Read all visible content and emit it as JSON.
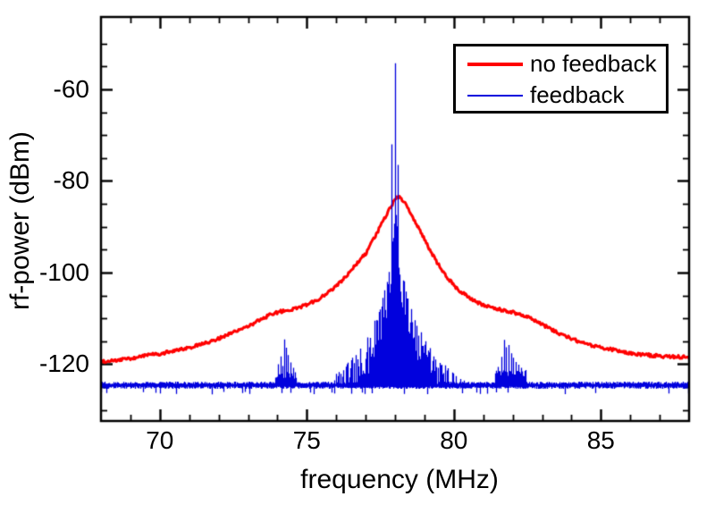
{
  "chart_data": {
    "type": "line",
    "title": "",
    "xlabel": "frequency (MHz)",
    "ylabel": "rf-power (dBm)",
    "xlim": [
      68,
      88
    ],
    "ylim": [
      -132.4,
      -44.2
    ],
    "x_major_ticks": [
      70,
      75,
      80,
      85
    ],
    "x_tick_labels": [
      "70",
      "75",
      "80",
      "85"
    ],
    "x_minor_ticks": [
      69,
      71,
      72,
      73,
      74,
      76,
      77,
      78,
      79,
      81,
      82,
      83,
      84,
      86,
      87
    ],
    "y_major_ticks": [
      -60,
      -80,
      -100,
      -120
    ],
    "y_tick_labels": [
      "-60",
      "-80",
      "-100",
      "-120"
    ],
    "y_minor_ticks": [
      -50,
      -55,
      -65,
      -70,
      -75,
      -85,
      -90,
      -95,
      -105,
      -110,
      -115,
      -125,
      -130
    ],
    "grid": false,
    "legend_position": "top-right",
    "frame_color": "#000000",
    "background_color": "#ffffff",
    "series": [
      {
        "name": "no feedback",
        "color": "#ff0000",
        "line_width": 3,
        "style": "smooth_noisy_line",
        "noise_db": 0.35,
        "points": [
          [
            68,
            -119.4
          ],
          [
            68.5,
            -119.1
          ],
          [
            69,
            -118.7
          ],
          [
            69.5,
            -118.2
          ],
          [
            70,
            -117.7
          ],
          [
            70.5,
            -117.1
          ],
          [
            71,
            -116.4
          ],
          [
            71.5,
            -115.5
          ],
          [
            72,
            -114.4
          ],
          [
            72.5,
            -113.1
          ],
          [
            73,
            -111.7
          ],
          [
            73.4,
            -110.4
          ],
          [
            73.7,
            -109.4
          ],
          [
            74,
            -108.7
          ],
          [
            74.3,
            -108.2
          ],
          [
            74.6,
            -107.9
          ],
          [
            75,
            -107
          ],
          [
            75.4,
            -105.8
          ],
          [
            75.8,
            -104
          ],
          [
            76.1,
            -102.3
          ],
          [
            76.4,
            -100.3
          ],
          [
            76.7,
            -98
          ],
          [
            77,
            -95.9
          ],
          [
            77.2,
            -93.6
          ],
          [
            77.4,
            -91.2
          ],
          [
            77.6,
            -88.7
          ],
          [
            77.8,
            -86.3
          ],
          [
            77.95,
            -84.6
          ],
          [
            78.1,
            -83.4
          ],
          [
            78.25,
            -84.1
          ],
          [
            78.4,
            -85.6
          ],
          [
            78.6,
            -87.8
          ],
          [
            78.8,
            -90.2
          ],
          [
            79,
            -92.7
          ],
          [
            79.2,
            -95.2
          ],
          [
            79.45,
            -98
          ],
          [
            79.7,
            -100.5
          ],
          [
            80,
            -102.8
          ],
          [
            80.3,
            -104.5
          ],
          [
            80.7,
            -106.2
          ],
          [
            81.1,
            -107.4
          ],
          [
            81.5,
            -108
          ],
          [
            81.9,
            -108.5
          ],
          [
            82.3,
            -109.2
          ],
          [
            82.7,
            -110.3
          ],
          [
            83.1,
            -111.7
          ],
          [
            83.6,
            -113.3
          ],
          [
            84.1,
            -114.7
          ],
          [
            84.6,
            -115.7
          ],
          [
            85.1,
            -116.5
          ],
          [
            85.6,
            -117.1
          ],
          [
            86.1,
            -117.7
          ],
          [
            86.6,
            -118
          ],
          [
            87.1,
            -118.3
          ],
          [
            87.6,
            -118.4
          ],
          [
            88,
            -118.5
          ]
        ]
      },
      {
        "name": "feedback",
        "color": "#0101dd",
        "line_width": 1.3,
        "style": "spectrum_comb",
        "baseline_dbm": -124.6,
        "baseline_noise_db": 0.55,
        "main_spike": [
          78.0,
          -54.3
        ],
        "secondary_spikes": [
          [
            77.88,
            -72
          ],
          [
            78.08,
            -76.5
          ]
        ],
        "comb_envelope": [
          [
            75.6,
            -123.5
          ],
          [
            75.9,
            -122.3
          ],
          [
            76.2,
            -120.6
          ],
          [
            76.5,
            -118.6
          ],
          [
            76.8,
            -116.2
          ],
          [
            77.0,
            -114.3
          ],
          [
            77.2,
            -111.6
          ],
          [
            77.4,
            -108.3
          ],
          [
            77.5,
            -106.5
          ],
          [
            77.6,
            -104.3
          ],
          [
            77.7,
            -101.5
          ],
          [
            77.8,
            -97.5
          ],
          [
            77.9,
            -91.5
          ],
          [
            78.0,
            -84.5
          ],
          [
            78.1,
            -91.5
          ],
          [
            78.2,
            -97.5
          ],
          [
            78.3,
            -101.5
          ],
          [
            78.4,
            -104.3
          ],
          [
            78.5,
            -106.5
          ],
          [
            78.6,
            -108.3
          ],
          [
            78.8,
            -111.6
          ],
          [
            79.0,
            -114.3
          ],
          [
            79.2,
            -116.2
          ],
          [
            79.5,
            -118.6
          ],
          [
            79.8,
            -120.6
          ],
          [
            80.1,
            -122.3
          ],
          [
            80.4,
            -123.5
          ]
        ],
        "side_clusters": [
          {
            "center": 74.25,
            "range": [
              73.9,
              74.65
            ],
            "band_dbm": -122.3,
            "spikes": [
              [
                74.02,
                -120
              ],
              [
                74.12,
                -118.3
              ],
              [
                74.18,
                -120.4
              ],
              [
                74.24,
                -114.6
              ],
              [
                74.3,
                -116.4
              ],
              [
                74.36,
                -118
              ],
              [
                74.44,
                -119.6
              ],
              [
                74.52,
                -120.8
              ],
              [
                74.6,
                -121.8
              ]
            ]
          },
          {
            "center": 81.8,
            "range": [
              81.4,
              82.45
            ],
            "band_dbm": -121.9,
            "spikes": [
              [
                81.5,
                -120.6
              ],
              [
                81.62,
                -118.4
              ],
              [
                81.7,
                -114.7
              ],
              [
                81.78,
                -116.3
              ],
              [
                81.86,
                -115.8
              ],
              [
                81.94,
                -117.6
              ],
              [
                82.02,
                -118.6
              ],
              [
                82.1,
                -119.5
              ],
              [
                82.2,
                -120.1
              ],
              [
                82.3,
                -120.8
              ],
              [
                82.4,
                -121.6
              ]
            ]
          }
        ]
      }
    ]
  }
}
